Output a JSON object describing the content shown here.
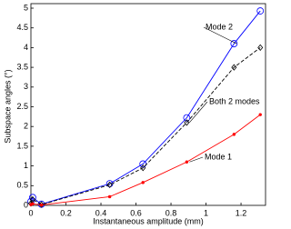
{
  "chart_data": {
    "type": "line",
    "xlabel": "Instantaneous amplitude (mm)",
    "ylabel": "Subspace angles (°)",
    "x": [
      0,
      0.01,
      0.06,
      0.45,
      0.64,
      0.89,
      1.16,
      1.31
    ],
    "series": [
      {
        "name": "Mode 2",
        "color": "#0000ff",
        "marker": "circle",
        "dash": "solid",
        "values": [
          0.1,
          0.2,
          0.03,
          0.55,
          1.05,
          2.22,
          4.1,
          4.93
        ]
      },
      {
        "name": "Both 2 modes",
        "color": "#000000",
        "marker": "diamond",
        "dash": "dashed",
        "values": [
          0.05,
          0.15,
          0.02,
          0.52,
          0.95,
          2.1,
          3.5,
          4.0
        ]
      },
      {
        "name": "Mode 1",
        "color": "#ff0000",
        "marker": "dot",
        "dash": "solid",
        "values": [
          0.02,
          0.04,
          0.01,
          0.22,
          0.58,
          1.1,
          1.8,
          2.3
        ]
      }
    ],
    "xlim": [
      0,
      1.34
    ],
    "xticks": [
      0,
      0.2,
      0.4,
      0.6,
      0.8,
      1,
      1.2
    ],
    "ylim": [
      0,
      5
    ],
    "yticks": [
      0,
      0.5,
      1,
      1.5,
      2,
      2.5,
      3,
      3.5,
      4,
      4.5,
      5
    ],
    "grid": false
  }
}
